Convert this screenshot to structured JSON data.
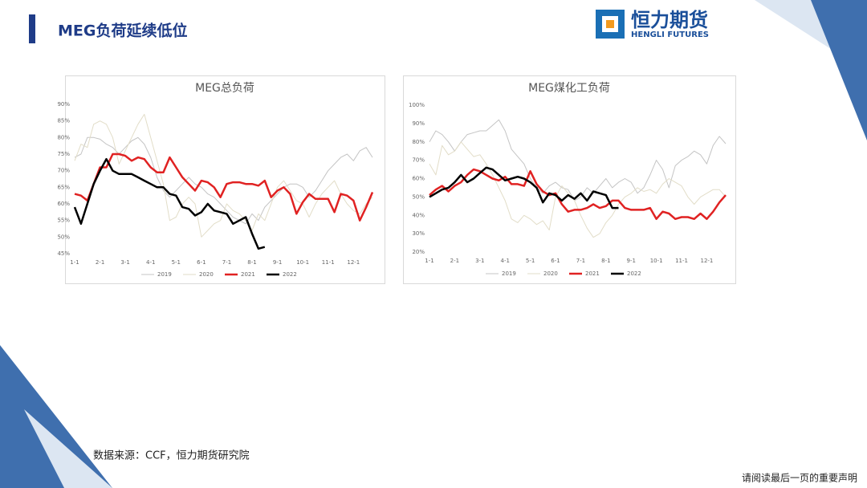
{
  "header": {
    "title": "MEG负荷延续低位"
  },
  "logo": {
    "name": "恒力期货",
    "subtitle": "HENGLI FUTURES"
  },
  "source": "数据来源：CCF，恒力期货研究院",
  "disclaimer": "请阅读最后一页的重要声明",
  "chart_data": [
    {
      "type": "line",
      "title": "MEG总负荷",
      "categories": [
        "1-1",
        null,
        null,
        null,
        "2-1",
        null,
        null,
        null,
        "3-1",
        null,
        null,
        null,
        "4-1",
        null,
        null,
        null,
        "5-1",
        null,
        null,
        null,
        "6-1",
        null,
        null,
        null,
        "7-1",
        null,
        null,
        null,
        "8-1",
        null,
        null,
        null,
        "9-1",
        null,
        null,
        null,
        "10-1",
        null,
        null,
        null,
        "11-1",
        null,
        null,
        null,
        "12-1",
        null,
        null,
        null
      ],
      "ylim": [
        45,
        90
      ],
      "yticks": [
        {
          "value": 45,
          "label": "45%"
        },
        {
          "value": 50,
          "label": "50%"
        },
        {
          "value": 55,
          "label": "55%"
        },
        {
          "value": 60,
          "label": "60%"
        },
        {
          "value": 65,
          "label": "65%"
        },
        {
          "value": 70,
          "label": "70%"
        },
        {
          "value": 75,
          "label": "75%"
        },
        {
          "value": 80,
          "label": "80%"
        },
        {
          "value": 85,
          "label": "85%"
        },
        {
          "value": 90,
          "label": "90%"
        }
      ],
      "grid": false,
      "legend": "bottom",
      "series": [
        {
          "name": "2019",
          "color": "#c4c4c4",
          "width": 1,
          "values": [
            74,
            75,
            80,
            80,
            79.5,
            78,
            77,
            75,
            77,
            79,
            80,
            78,
            74,
            68,
            64,
            62,
            64,
            66,
            68,
            66,
            65,
            63,
            62,
            60,
            58,
            56,
            55,
            54,
            57,
            55,
            59,
            61,
            63,
            65,
            66,
            66,
            65,
            62,
            64,
            67,
            70,
            72,
            74,
            75,
            73,
            76,
            77,
            74
          ]
        },
        {
          "name": "2020",
          "color": "#e2ddc8",
          "width": 1,
          "values": [
            73,
            78,
            77,
            84,
            85,
            84,
            80,
            72,
            76,
            80,
            84,
            87,
            80,
            73,
            66,
            55,
            56,
            60,
            62,
            60,
            50,
            52,
            54,
            55,
            60,
            58,
            57,
            55,
            52,
            57,
            55,
            60,
            65,
            67,
            64,
            61,
            60,
            56,
            60,
            63,
            65,
            67,
            63,
            60,
            58,
            57,
            60,
            62
          ]
        },
        {
          "name": "2021",
          "color": "#e02222",
          "width": 2.5,
          "values": [
            63,
            62.5,
            61,
            66,
            71,
            71,
            75,
            75,
            74.5,
            73,
            74,
            73.5,
            71,
            69.5,
            69.5,
            74,
            71,
            68,
            66,
            64,
            67,
            66.5,
            65,
            62,
            66,
            66.5,
            66.5,
            66,
            66,
            65.5,
            67,
            62,
            64,
            65,
            63,
            57,
            60.5,
            63,
            61.5,
            61.5,
            61.5,
            57.5,
            63,
            62.5,
            61,
            55,
            59,
            63.5
          ]
        },
        {
          "name": "2022",
          "color": "#000000",
          "width": 2.5,
          "values": [
            59,
            54,
            60,
            66,
            70,
            73.5,
            70,
            69,
            69,
            69,
            68,
            67,
            66,
            65,
            65,
            63,
            62.5,
            59,
            58.5,
            56.5,
            57.5,
            60,
            58,
            57.5,
            57,
            54,
            55,
            56,
            51,
            46.5,
            47,
            null,
            null,
            null,
            null,
            null,
            null,
            null,
            null,
            null,
            null,
            null,
            null,
            null,
            null,
            null,
            null,
            null
          ]
        }
      ]
    },
    {
      "type": "line",
      "title": "MEG煤化工负荷",
      "categories": [
        "1-1",
        null,
        null,
        null,
        "2-1",
        null,
        null,
        null,
        "3-1",
        null,
        null,
        null,
        "4-1",
        null,
        null,
        null,
        "5-1",
        null,
        null,
        null,
        "6-1",
        null,
        null,
        null,
        "7-1",
        null,
        null,
        null,
        "8-1",
        null,
        null,
        null,
        "9-1",
        null,
        null,
        null,
        "10-1",
        null,
        null,
        null,
        "11-1",
        null,
        null,
        null,
        "12-1",
        null,
        null,
        null
      ],
      "ylim": [
        20,
        100
      ],
      "yticks": [
        {
          "value": 20,
          "label": "20%"
        },
        {
          "value": 30,
          "label": "30%"
        },
        {
          "value": 40,
          "label": "40%"
        },
        {
          "value": 50,
          "label": "50%"
        },
        {
          "value": 60,
          "label": "60%"
        },
        {
          "value": 70,
          "label": "70%"
        },
        {
          "value": 80,
          "label": "80%"
        },
        {
          "value": 90,
          "label": "90%"
        },
        {
          "value": 100,
          "label": "100%"
        }
      ],
      "grid": false,
      "legend": "bottom",
      "series": [
        {
          "name": "2019",
          "color": "#c4c4c4",
          "width": 1,
          "values": [
            80,
            86,
            84,
            80,
            75,
            80,
            84,
            85,
            86,
            86,
            89,
            92,
            86,
            76,
            72,
            68,
            60,
            55,
            52,
            56,
            58,
            55,
            54,
            48,
            50,
            55,
            52,
            56,
            60,
            55,
            58,
            60,
            58,
            52,
            55,
            62,
            70,
            65,
            55,
            67,
            70,
            72,
            75,
            73,
            68,
            78,
            83,
            79
          ]
        },
        {
          "name": "2020",
          "color": "#e2ddc8",
          "width": 1,
          "values": [
            68,
            62,
            78,
            73,
            75,
            80,
            76,
            72,
            73,
            68,
            62,
            55,
            48,
            38,
            36,
            40,
            38,
            35,
            37,
            32,
            50,
            56,
            52,
            48,
            40,
            33,
            28,
            30,
            36,
            40,
            46,
            50,
            52,
            55,
            53,
            54,
            52,
            57,
            60,
            58,
            56,
            50,
            46,
            50,
            52,
            54,
            54,
            50
          ]
        },
        {
          "name": "2021",
          "color": "#e02222",
          "width": 2.5,
          "values": [
            51,
            54,
            56,
            53,
            56,
            58,
            62,
            65,
            64,
            62,
            60,
            59,
            61,
            57,
            57,
            56,
            64,
            57,
            53,
            51,
            52,
            46,
            42,
            43,
            43,
            44,
            46,
            44,
            45,
            48,
            48,
            44,
            43,
            43,
            43,
            44,
            38,
            42,
            41,
            38,
            39,
            39,
            38,
            41,
            38,
            42,
            47,
            51
          ]
        },
        {
          "name": "2022",
          "color": "#000000",
          "width": 2.5,
          "values": [
            50,
            52,
            54,
            55,
            58,
            62,
            58,
            60,
            63,
            66,
            65,
            62,
            59,
            60,
            61,
            60,
            58,
            55,
            47,
            52,
            51,
            48,
            51,
            49,
            52,
            48,
            53,
            52,
            51,
            44,
            44,
            null,
            null,
            null,
            null,
            null,
            null,
            null,
            null,
            null,
            null,
            null,
            null,
            null,
            null,
            null,
            null,
            null
          ]
        }
      ]
    }
  ]
}
